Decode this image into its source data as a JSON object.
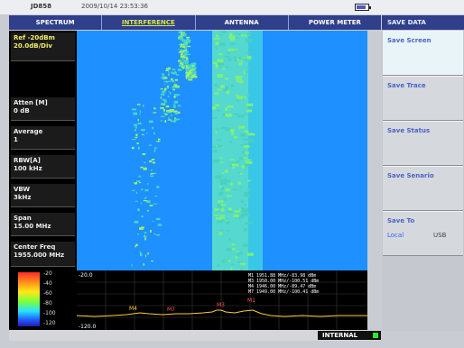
{
  "status": {
    "model": "JD858",
    "datetime": "2009/10/14 23:53:36"
  },
  "battery": {
    "level": 0.8
  },
  "tabs": [
    {
      "label": "SPECTRUM",
      "active": false
    },
    {
      "label": "INTERFERENCE",
      "active": true
    },
    {
      "label": "ANTENNA",
      "active": false
    },
    {
      "label": "POWER METER",
      "active": false
    }
  ],
  "params": {
    "ref_label": "Ref -20dBm",
    "ref_scale": "20.0dB/Div",
    "atten_label": "Atten [M]",
    "atten_value": "0 dB",
    "average_label": "Average",
    "average_value": "1",
    "rbw_label": "RBW[A]",
    "rbw_value": "100 kHz",
    "vbw_label": "VBW",
    "vbw_value": "3kHz",
    "span_label": "Span",
    "span_value": "15.00 MHz",
    "center_label": "Center Freq",
    "center_value": "1955.000 MHz"
  },
  "colorbar": {
    "ticks": [
      "-20",
      "-40",
      "-60",
      "-80",
      "-100",
      "-120"
    ]
  },
  "trace": {
    "top_ref": "-20.0",
    "bottom_ref": "-120.0",
    "markers": [
      {
        "label": "M4"
      },
      {
        "label": "M7"
      },
      {
        "label": "M3"
      },
      {
        "label": "M1"
      }
    ],
    "readouts": [
      "M1   1951.88 MHz/-83.98 dBm",
      "M3   1950.00 MHz/-100.51 dBm",
      "M4   1946.00 MHz/-89.47 dBm",
      "M7   1949.00 MHz/-100.41 dBm"
    ]
  },
  "status_strip": {
    "internal": "INTERNAL"
  },
  "softmenu": {
    "title": "SAVE DATA",
    "keys": [
      "Save Screen",
      "Save Trace",
      "Save Status",
      "Save Senario",
      "Save To"
    ],
    "save_to_options": [
      "Local",
      "USB"
    ],
    "save_to_selected": "Local"
  },
  "colors": {
    "tab_bar": "#2f3f8a",
    "spectro_background": "#1e90ff",
    "trace_line": "#ffcc33",
    "active_tab_text": "#d6e84a"
  }
}
